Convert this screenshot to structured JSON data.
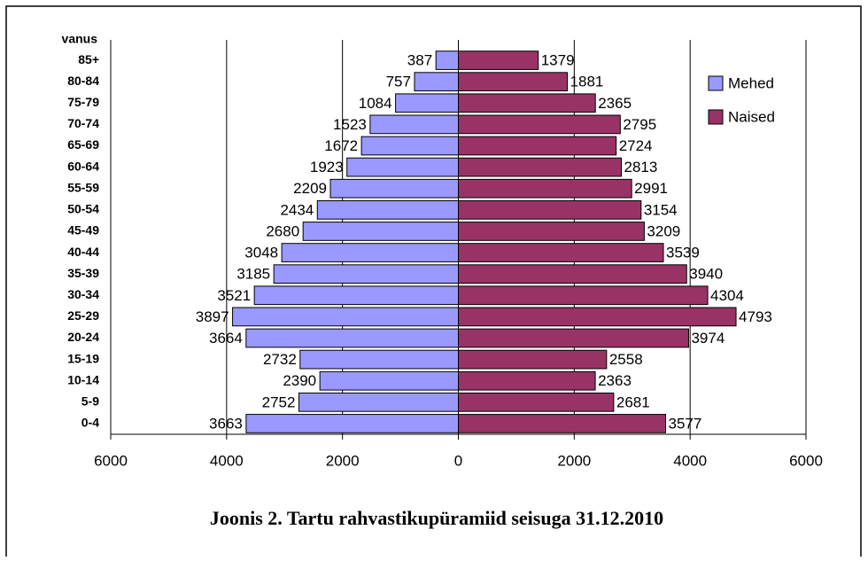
{
  "chart_data": {
    "type": "pyramid",
    "title": "Joonis 2. Tartu rahvastikupüramiid seisuga 31.12.2010",
    "y_label": "vanus",
    "categories": [
      "85+",
      "80-84",
      "75-79",
      "70-74",
      "65-69",
      "60-64",
      "55-59",
      "50-54",
      "45-49",
      "40-44",
      "35-39",
      "30-34",
      "25-29",
      "20-24",
      "15-19",
      "10-14",
      "5-9",
      "0-4"
    ],
    "series": [
      {
        "name": "Mehed",
        "color": "#9999ff",
        "side": "left",
        "values": [
          387,
          757,
          1084,
          1523,
          1672,
          1923,
          2209,
          2434,
          2680,
          3048,
          3185,
          3521,
          3897,
          3664,
          2732,
          2390,
          2752,
          3663
        ]
      },
      {
        "name": "Naised",
        "color": "#993366",
        "side": "right",
        "values": [
          1379,
          1881,
          2365,
          2795,
          2724,
          2813,
          2991,
          3154,
          3209,
          3539,
          3940,
          4304,
          4793,
          3974,
          2558,
          2363,
          2681,
          3577
        ]
      }
    ],
    "xlim": [
      -6000,
      6000
    ],
    "xticks": [
      {
        "value": -6000,
        "label": "6000"
      },
      {
        "value": -4000,
        "label": "4000"
      },
      {
        "value": -2000,
        "label": "2000"
      },
      0,
      2000,
      4000,
      6000
    ],
    "grid": true,
    "legend": "right"
  }
}
